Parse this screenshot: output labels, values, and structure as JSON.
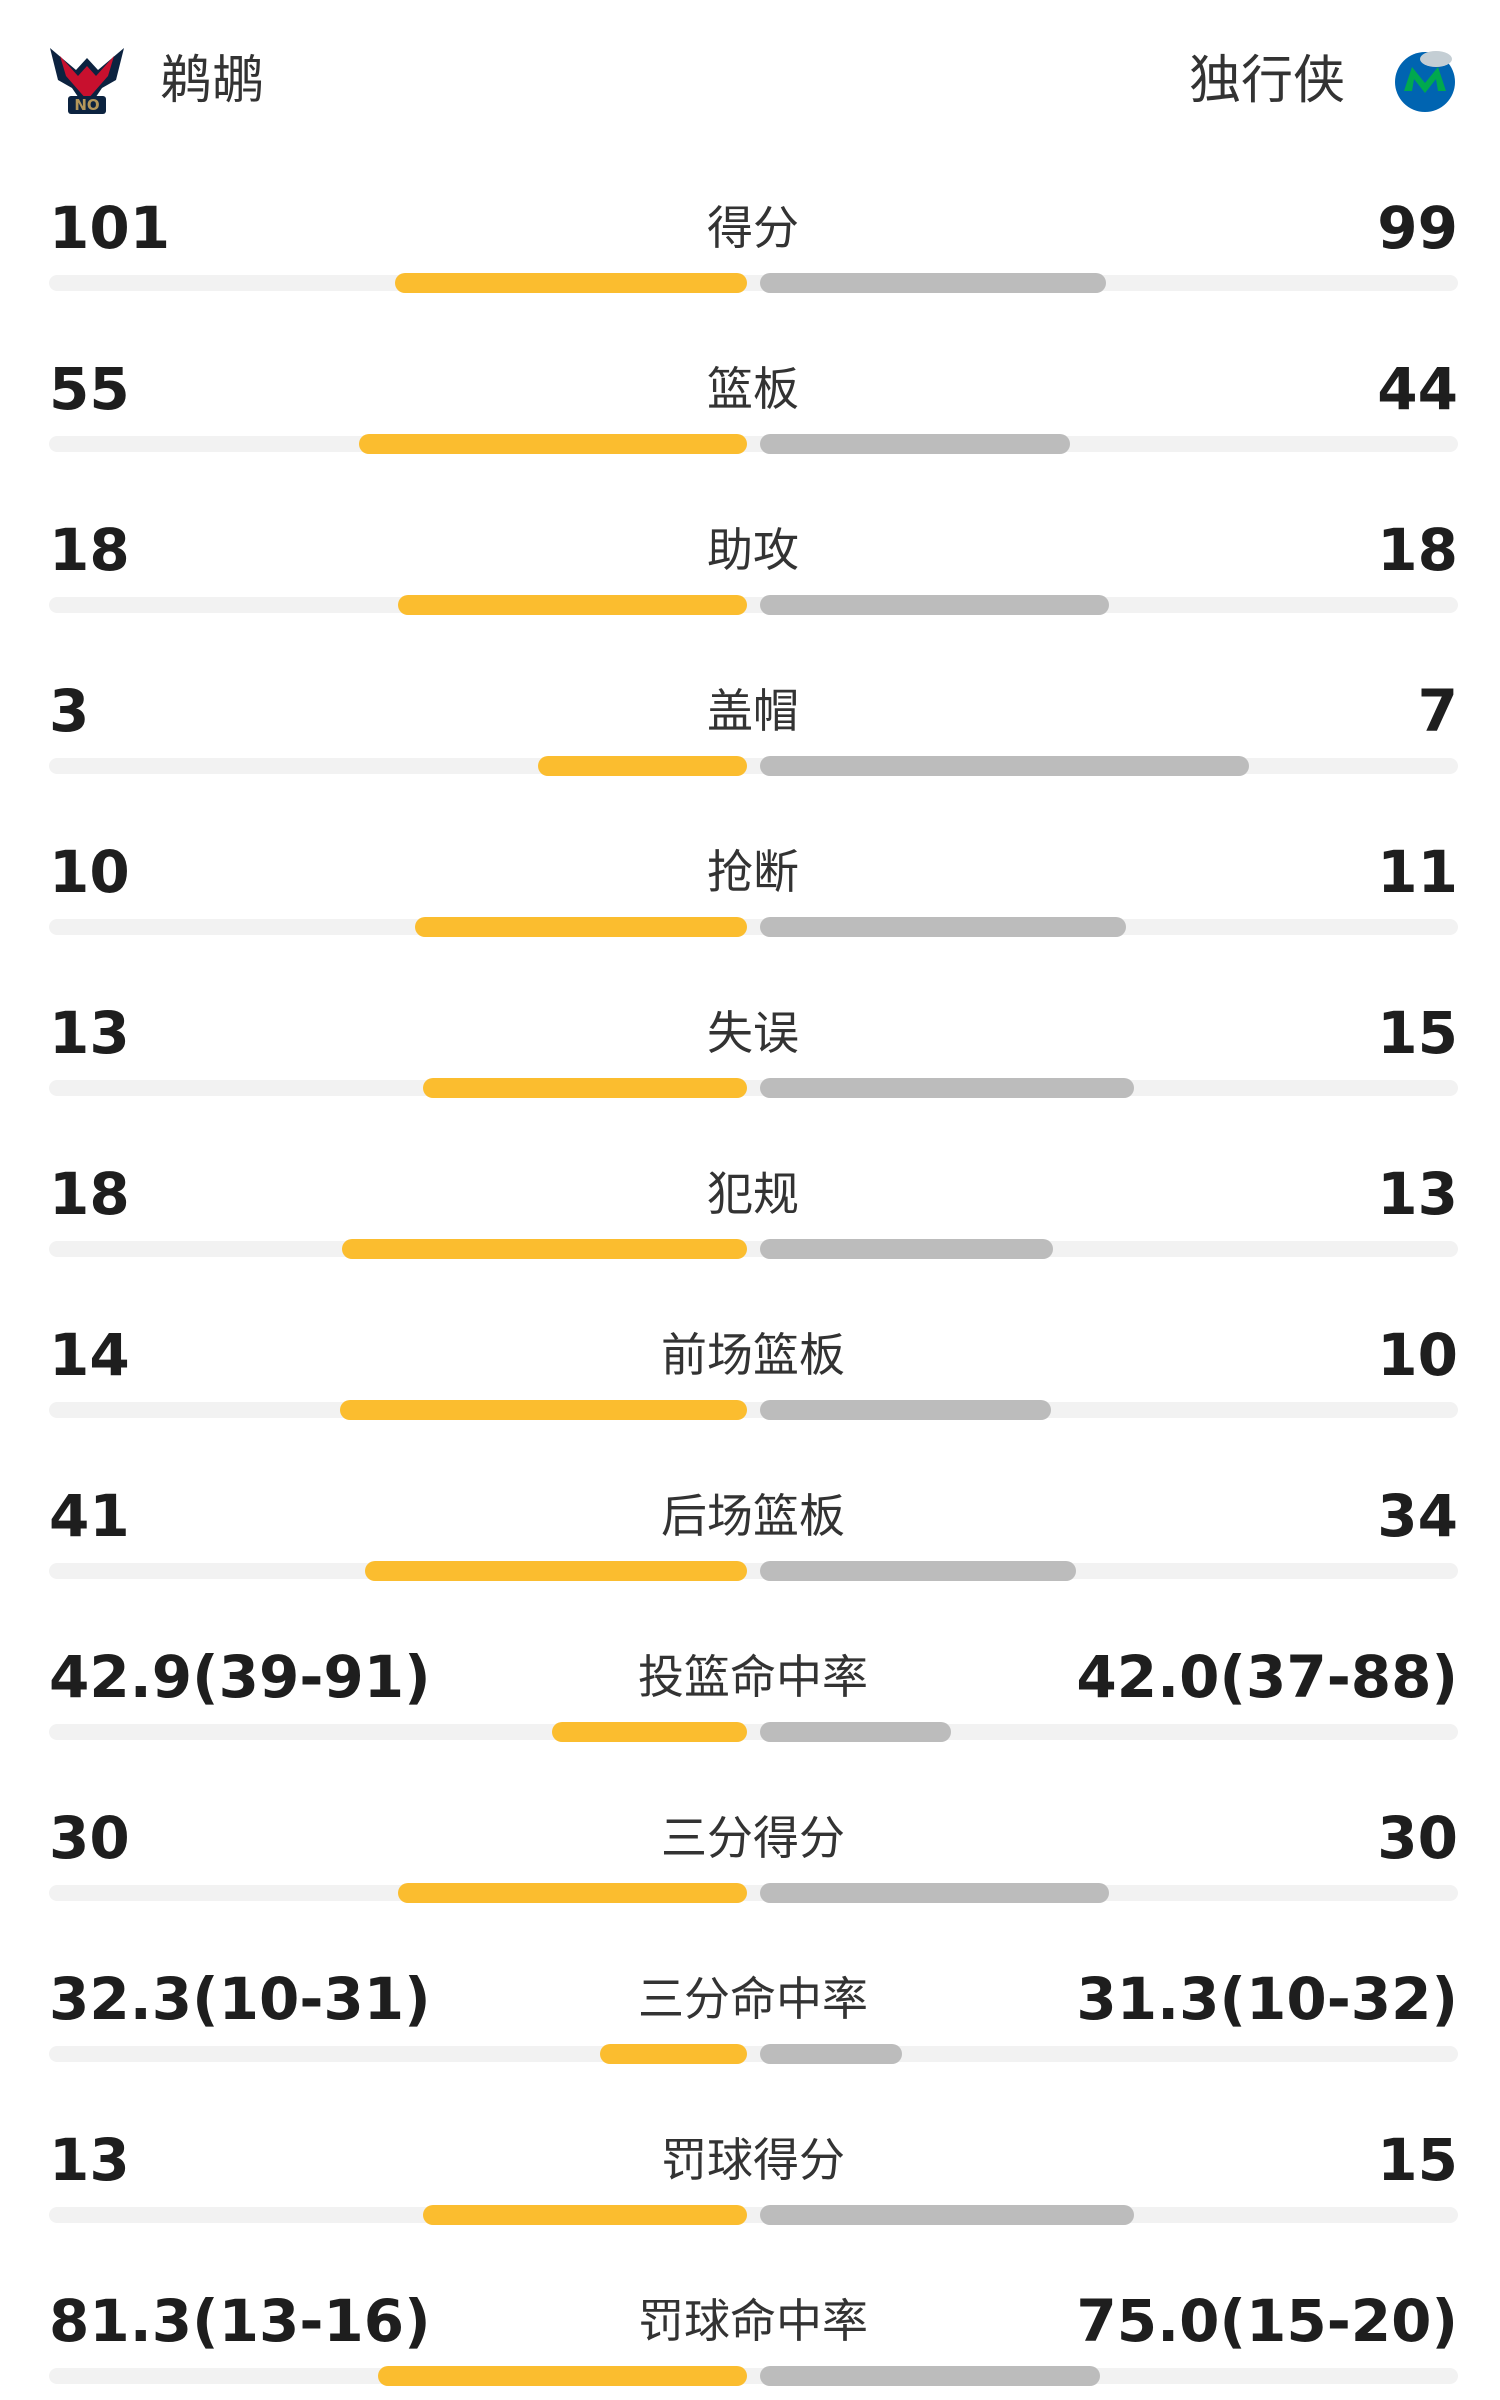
{
  "header": {
    "home": "鹈鹕",
    "away": "独行侠"
  },
  "stats": {
    "rows": [
      {
        "label": "得分",
        "home": 101,
        "away": 99
      },
      {
        "label": "篮板",
        "home": 55,
        "away": 44
      },
      {
        "label": "助攻",
        "home": 18,
        "away": 18
      },
      {
        "label": "盖帽",
        "home": 3,
        "away": 7
      },
      {
        "label": "抢断",
        "home": 10,
        "away": 11
      },
      {
        "label": "失误",
        "home": 13,
        "away": 15
      },
      {
        "label": "犯规",
        "home": 18,
        "away": 13
      },
      {
        "label": "前场篮板",
        "home": 14,
        "away": 10
      },
      {
        "label": "后场篮板",
        "home": 41,
        "away": 34
      },
      {
        "label": "投篮命中率",
        "home": {
          "value": 42.9,
          "label": "42.9(39-91)"
        },
        "away": {
          "value": 42.0,
          "label": "42.0(37-88)"
        }
      },
      {
        "label": "三分得分",
        "home": 30,
        "away": 30
      },
      {
        "label": "三分命中率",
        "home": {
          "value": 32.3,
          "label": "32.3(10-31)"
        },
        "away": {
          "value": 31.3,
          "label": "31.3(10-32)"
        }
      },
      {
        "label": "罚球得分",
        "home": 13,
        "away": 15
      },
      {
        "label": "罚球命中率",
        "home": {
          "value": 81.3,
          "label": "81.3(13-16)"
        },
        "away": {
          "value": 75.0,
          "label": "75.0(15-20)"
        }
      }
    ]
  }
}
